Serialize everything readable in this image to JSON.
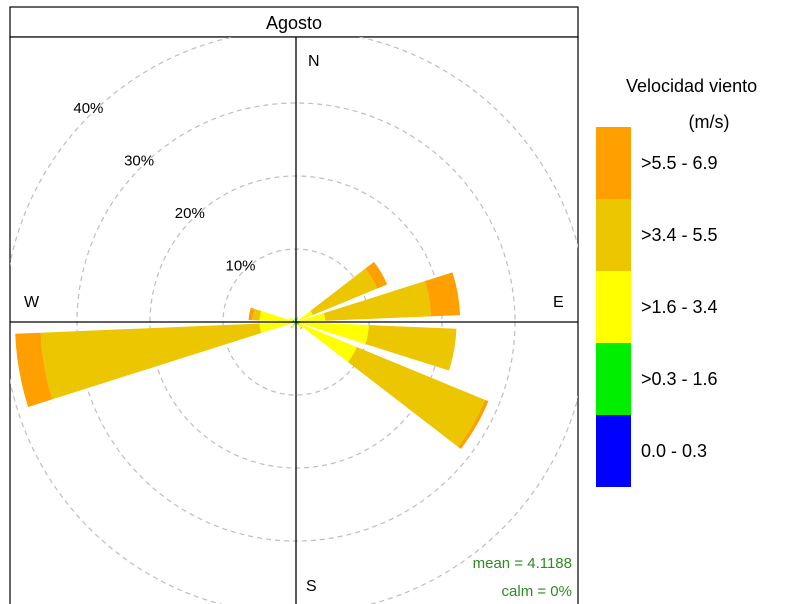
{
  "chart_data": {
    "type": "windrose",
    "title": "Agosto",
    "directions": {
      "north": "N",
      "east": "E",
      "south": "S",
      "west": "W"
    },
    "radial_ticks": [
      {
        "value": 10,
        "label": "10%"
      },
      {
        "value": 20,
        "label": "20%"
      },
      {
        "value": 30,
        "label": "30%"
      },
      {
        "value": 40,
        "label": "40%"
      }
    ],
    "radial_max": 40,
    "legend": {
      "title_line1": "Velocidad viento",
      "title_line2": "(m/s)",
      "bins": [
        {
          "label": ">5.5 - 6.9",
          "color": "#FF9F00"
        },
        {
          "label": ">3.4 - 5.5",
          "color": "#ECC600"
        },
        {
          "label": ">1.6 - 3.4",
          "color": "#FFFF00"
        },
        {
          "label": ">0.3 - 1.6",
          "color": "#00EE00"
        },
        {
          "label": "0.0 - 0.3",
          "color": "#0000FF"
        }
      ]
    },
    "bin_order": [
      "0.0 - 0.3",
      ">0.3 - 1.6",
      ">1.6 - 3.4",
      ">3.4 - 5.5",
      ">5.5 - 6.9"
    ],
    "sectors": [
      {
        "direction_deg": 60,
        "cumulative": [
          0,
          0.3,
          2.5,
          12.0,
          13.5
        ]
      },
      {
        "direction_deg": 80,
        "cumulative": [
          0,
          0.5,
          4.0,
          18.5,
          22.5
        ]
      },
      {
        "direction_deg": 100,
        "cumulative": [
          0,
          0.5,
          10.0,
          22.0,
          22.0
        ]
      },
      {
        "direction_deg": 120,
        "cumulative": [
          0,
          0.5,
          9.0,
          28.0,
          28.5
        ]
      },
      {
        "direction_deg": 140,
        "cumulative": [
          0,
          0.5,
          1.0,
          1.2,
          1.2
        ]
      },
      {
        "direction_deg": 180,
        "cumulative": [
          0,
          0.5,
          0.5,
          0.5,
          0.5
        ]
      },
      {
        "direction_deg": 220,
        "cumulative": [
          0,
          0.5,
          0.8,
          1.0,
          1.0
        ]
      },
      {
        "direction_deg": 260,
        "cumulative": [
          0,
          0.5,
          5.0,
          35.0,
          38.5
        ]
      },
      {
        "direction_deg": 280,
        "cumulative": [
          0,
          0.5,
          5.0,
          6.0,
          6.5
        ]
      },
      {
        "direction_deg": 300,
        "cumulative": [
          0,
          0.5,
          1.0,
          1.0,
          1.0
        ]
      },
      {
        "direction_deg": 340,
        "cumulative": [
          0,
          0.5,
          0.5,
          0.5,
          0.5
        ]
      },
      {
        "direction_deg": 20,
        "cumulative": [
          0,
          0.5,
          0.8,
          0.8,
          0.8
        ]
      }
    ],
    "stats": {
      "mean": "mean = 4.1188",
      "calm": "calm = 0%"
    },
    "stats_color": "#2E8B22",
    "grid_color": "#BEBEBE"
  }
}
